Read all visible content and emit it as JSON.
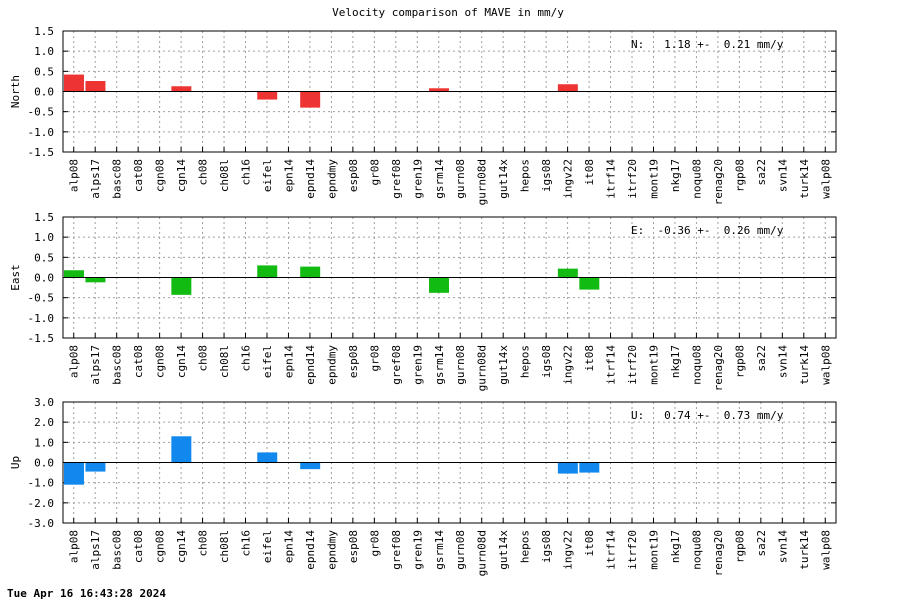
{
  "title": "Velocity comparison of MAVE in mm/y",
  "timestamp": "Tue Apr 16 16:43:28 2024",
  "stations": [
    "alp08",
    "alps17",
    "basc08",
    "cat08",
    "cgn08",
    "cgn14",
    "ch08",
    "ch08l",
    "ch16",
    "eifel",
    "epn14",
    "epnd14",
    "epndmy",
    "esp08",
    "gr08",
    "gref08",
    "gren19",
    "gsrm14",
    "gurn08",
    "gurn08d",
    "gut14x",
    "hepos",
    "igs08",
    "ingv22",
    "it08",
    "itrf14",
    "itrf20",
    "mont19",
    "nkg17",
    "noqu08",
    "renag20",
    "rgp08",
    "sa22",
    "svn14",
    "turk14",
    "walp08"
  ],
  "chart_data": [
    {
      "type": "bar",
      "ylabel": "North",
      "ylim": [
        -1.5,
        1.5
      ],
      "yticks": [
        "-1.5",
        "-1.0",
        "-0.5",
        "0.0",
        "0.5",
        "1.0",
        "1.5"
      ],
      "color": "#ee3333",
      "annotation": "N:   1.18 +-  0.21 mm/y",
      "values": [
        0.42,
        0.26,
        0,
        0,
        0,
        0.13,
        0,
        0,
        0,
        -0.2,
        0,
        -0.4,
        0,
        0,
        0,
        0,
        0,
        0.08,
        0,
        0,
        0,
        0,
        0,
        0.18,
        0,
        0,
        0,
        0,
        0,
        0,
        0,
        0,
        0,
        0,
        0,
        0
      ]
    },
    {
      "type": "bar",
      "ylabel": "East",
      "ylim": [
        -1.5,
        1.5
      ],
      "yticks": [
        "-1.5",
        "-1.0",
        "-0.5",
        "0.0",
        "0.5",
        "1.0",
        "1.5"
      ],
      "color": "#11bb11",
      "annotation": "E:  -0.36 +-  0.26 mm/y",
      "values": [
        0.18,
        -0.12,
        0,
        0,
        0,
        -0.43,
        0,
        0,
        0,
        0.3,
        0,
        0.27,
        0,
        0,
        0,
        0,
        0,
        -0.38,
        0,
        0,
        0,
        0,
        0,
        0.22,
        -0.3,
        0,
        0,
        0,
        0,
        0,
        0,
        0,
        0,
        0,
        0,
        0
      ]
    },
    {
      "type": "bar",
      "ylabel": "Up",
      "ylim": [
        -3.0,
        3.0
      ],
      "yticks": [
        "-3.0",
        "-2.0",
        "-1.0",
        "0.0",
        "1.0",
        "2.0",
        "3.0"
      ],
      "color": "#1188ee",
      "annotation": "U:   0.74 +-  0.73 mm/y",
      "values": [
        -1.1,
        -0.45,
        0,
        0,
        0,
        1.3,
        0,
        0,
        0,
        0.5,
        0,
        -0.33,
        0,
        0,
        0,
        0,
        0,
        0,
        0,
        0,
        0,
        0,
        0,
        -0.55,
        -0.5,
        0,
        0,
        0,
        0,
        0,
        0,
        0,
        0,
        0,
        0,
        0
      ]
    }
  ]
}
